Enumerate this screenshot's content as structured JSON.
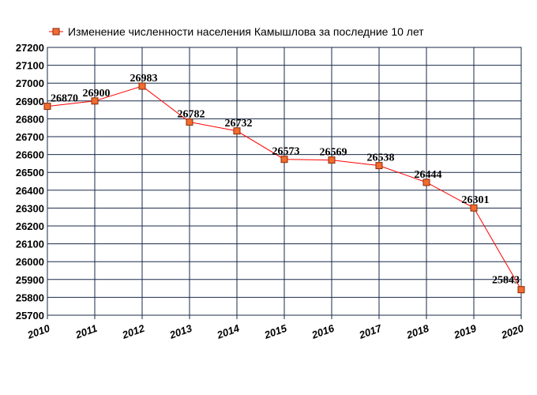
{
  "chart_data": {
    "type": "line",
    "title": "",
    "xlabel": "",
    "ylabel": "",
    "x": [
      "2010",
      "2011",
      "2012",
      "2013",
      "2014",
      "2015",
      "2016",
      "2017",
      "2018",
      "2019",
      "2020"
    ],
    "y_ticks": [
      "25700",
      "25800",
      "25900",
      "26000",
      "26100",
      "26200",
      "26300",
      "26400",
      "26500",
      "26600",
      "26700",
      "26800",
      "26900",
      "27000",
      "27100",
      "27200"
    ],
    "ylim": [
      25700,
      27200
    ],
    "grid": true,
    "legend_position": "top-center",
    "series": [
      {
        "name": "Изменение численности населения Камышлова за последние 10 лет",
        "color": "#ff0000",
        "marker_color": "#f26c2e",
        "values": [
          26870,
          26900,
          26983,
          26782,
          26732,
          26573,
          26569,
          26538,
          26444,
          26301,
          25843
        ],
        "labels": [
          "26870",
          "26900",
          "26983",
          "26782",
          "26732",
          "26573",
          "26569",
          "26538",
          "26444",
          "26301",
          "25843"
        ]
      }
    ],
    "grid_color": "#1a2a4a"
  }
}
